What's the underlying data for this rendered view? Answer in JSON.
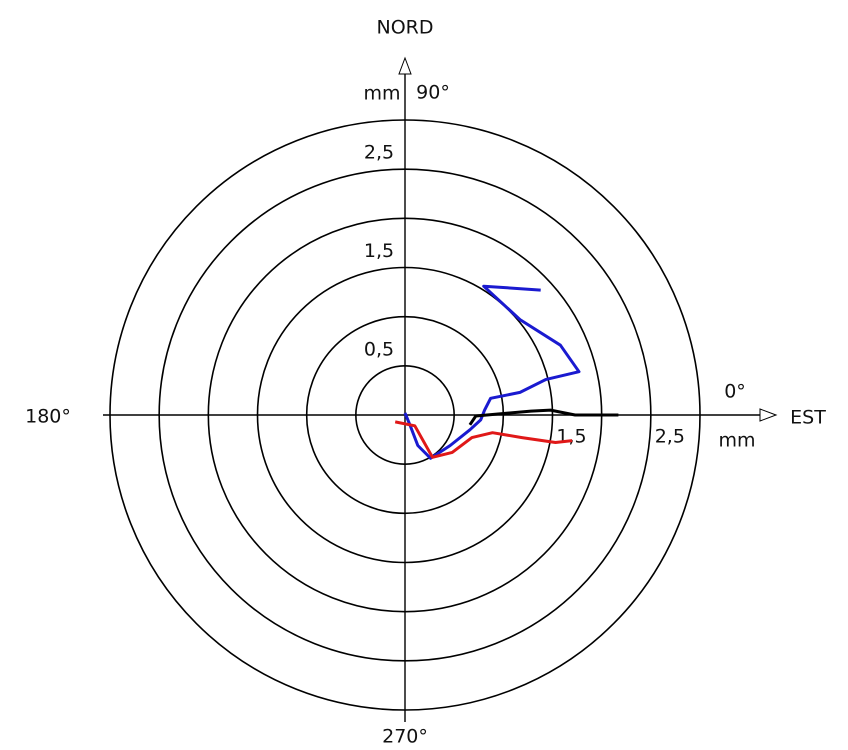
{
  "chart_data": {
    "type": "polar-xy",
    "north_label": "NORD",
    "east_label": "EST",
    "unit_label_top": "mm",
    "unit_label_right": "mm",
    "angle_labels": [
      {
        "value": 0,
        "label": "0°"
      },
      {
        "value": 90,
        "label": "90°"
      },
      {
        "value": 180,
        "label": "180°"
      },
      {
        "value": 270,
        "label": "270°"
      }
    ],
    "rlim": [
      0,
      3
    ],
    "rticks": [
      {
        "value": 0.5,
        "label": "0,5"
      },
      {
        "value": 1,
        "label": null
      },
      {
        "value": 1.5,
        "label": "1,5"
      },
      {
        "value": 2,
        "label": null
      },
      {
        "value": 2.5,
        "label": "2,5"
      },
      {
        "value": 3,
        "label": null
      }
    ],
    "east_ticks": [
      {
        "value": 1.5,
        "label": "1,5"
      },
      {
        "value": 2.5,
        "label": "2,5"
      }
    ],
    "series": [
      {
        "color": "#1a1ad0",
        "x": [
          1.38,
          0.8,
          1.17,
          1.58,
          1.77,
          1.43,
          1.17,
          0.87,
          0.81,
          0.77,
          0.66,
          0.46,
          0.26,
          0.13,
          0.05,
          0.0
        ],
        "y": [
          1.27,
          1.31,
          0.97,
          0.71,
          0.44,
          0.36,
          0.23,
          0.17,
          0.05,
          -0.05,
          -0.15,
          -0.31,
          -0.44,
          -0.31,
          -0.1,
          0.02
        ]
      },
      {
        "color": "#000000",
        "x": [
          0.66,
          0.72,
          1.28,
          1.48,
          1.73,
          2.17
        ],
        "y": [
          -0.1,
          -0.01,
          0.04,
          0.05,
          0.0,
          0.0
        ]
      },
      {
        "color": "#e01818",
        "x": [
          -0.1,
          0.1,
          0.28,
          0.48,
          0.68,
          0.89,
          1.19,
          1.53,
          1.7
        ],
        "y": [
          -0.07,
          -0.11,
          -0.43,
          -0.38,
          -0.23,
          -0.18,
          -0.23,
          -0.28,
          -0.26
        ]
      }
    ]
  }
}
